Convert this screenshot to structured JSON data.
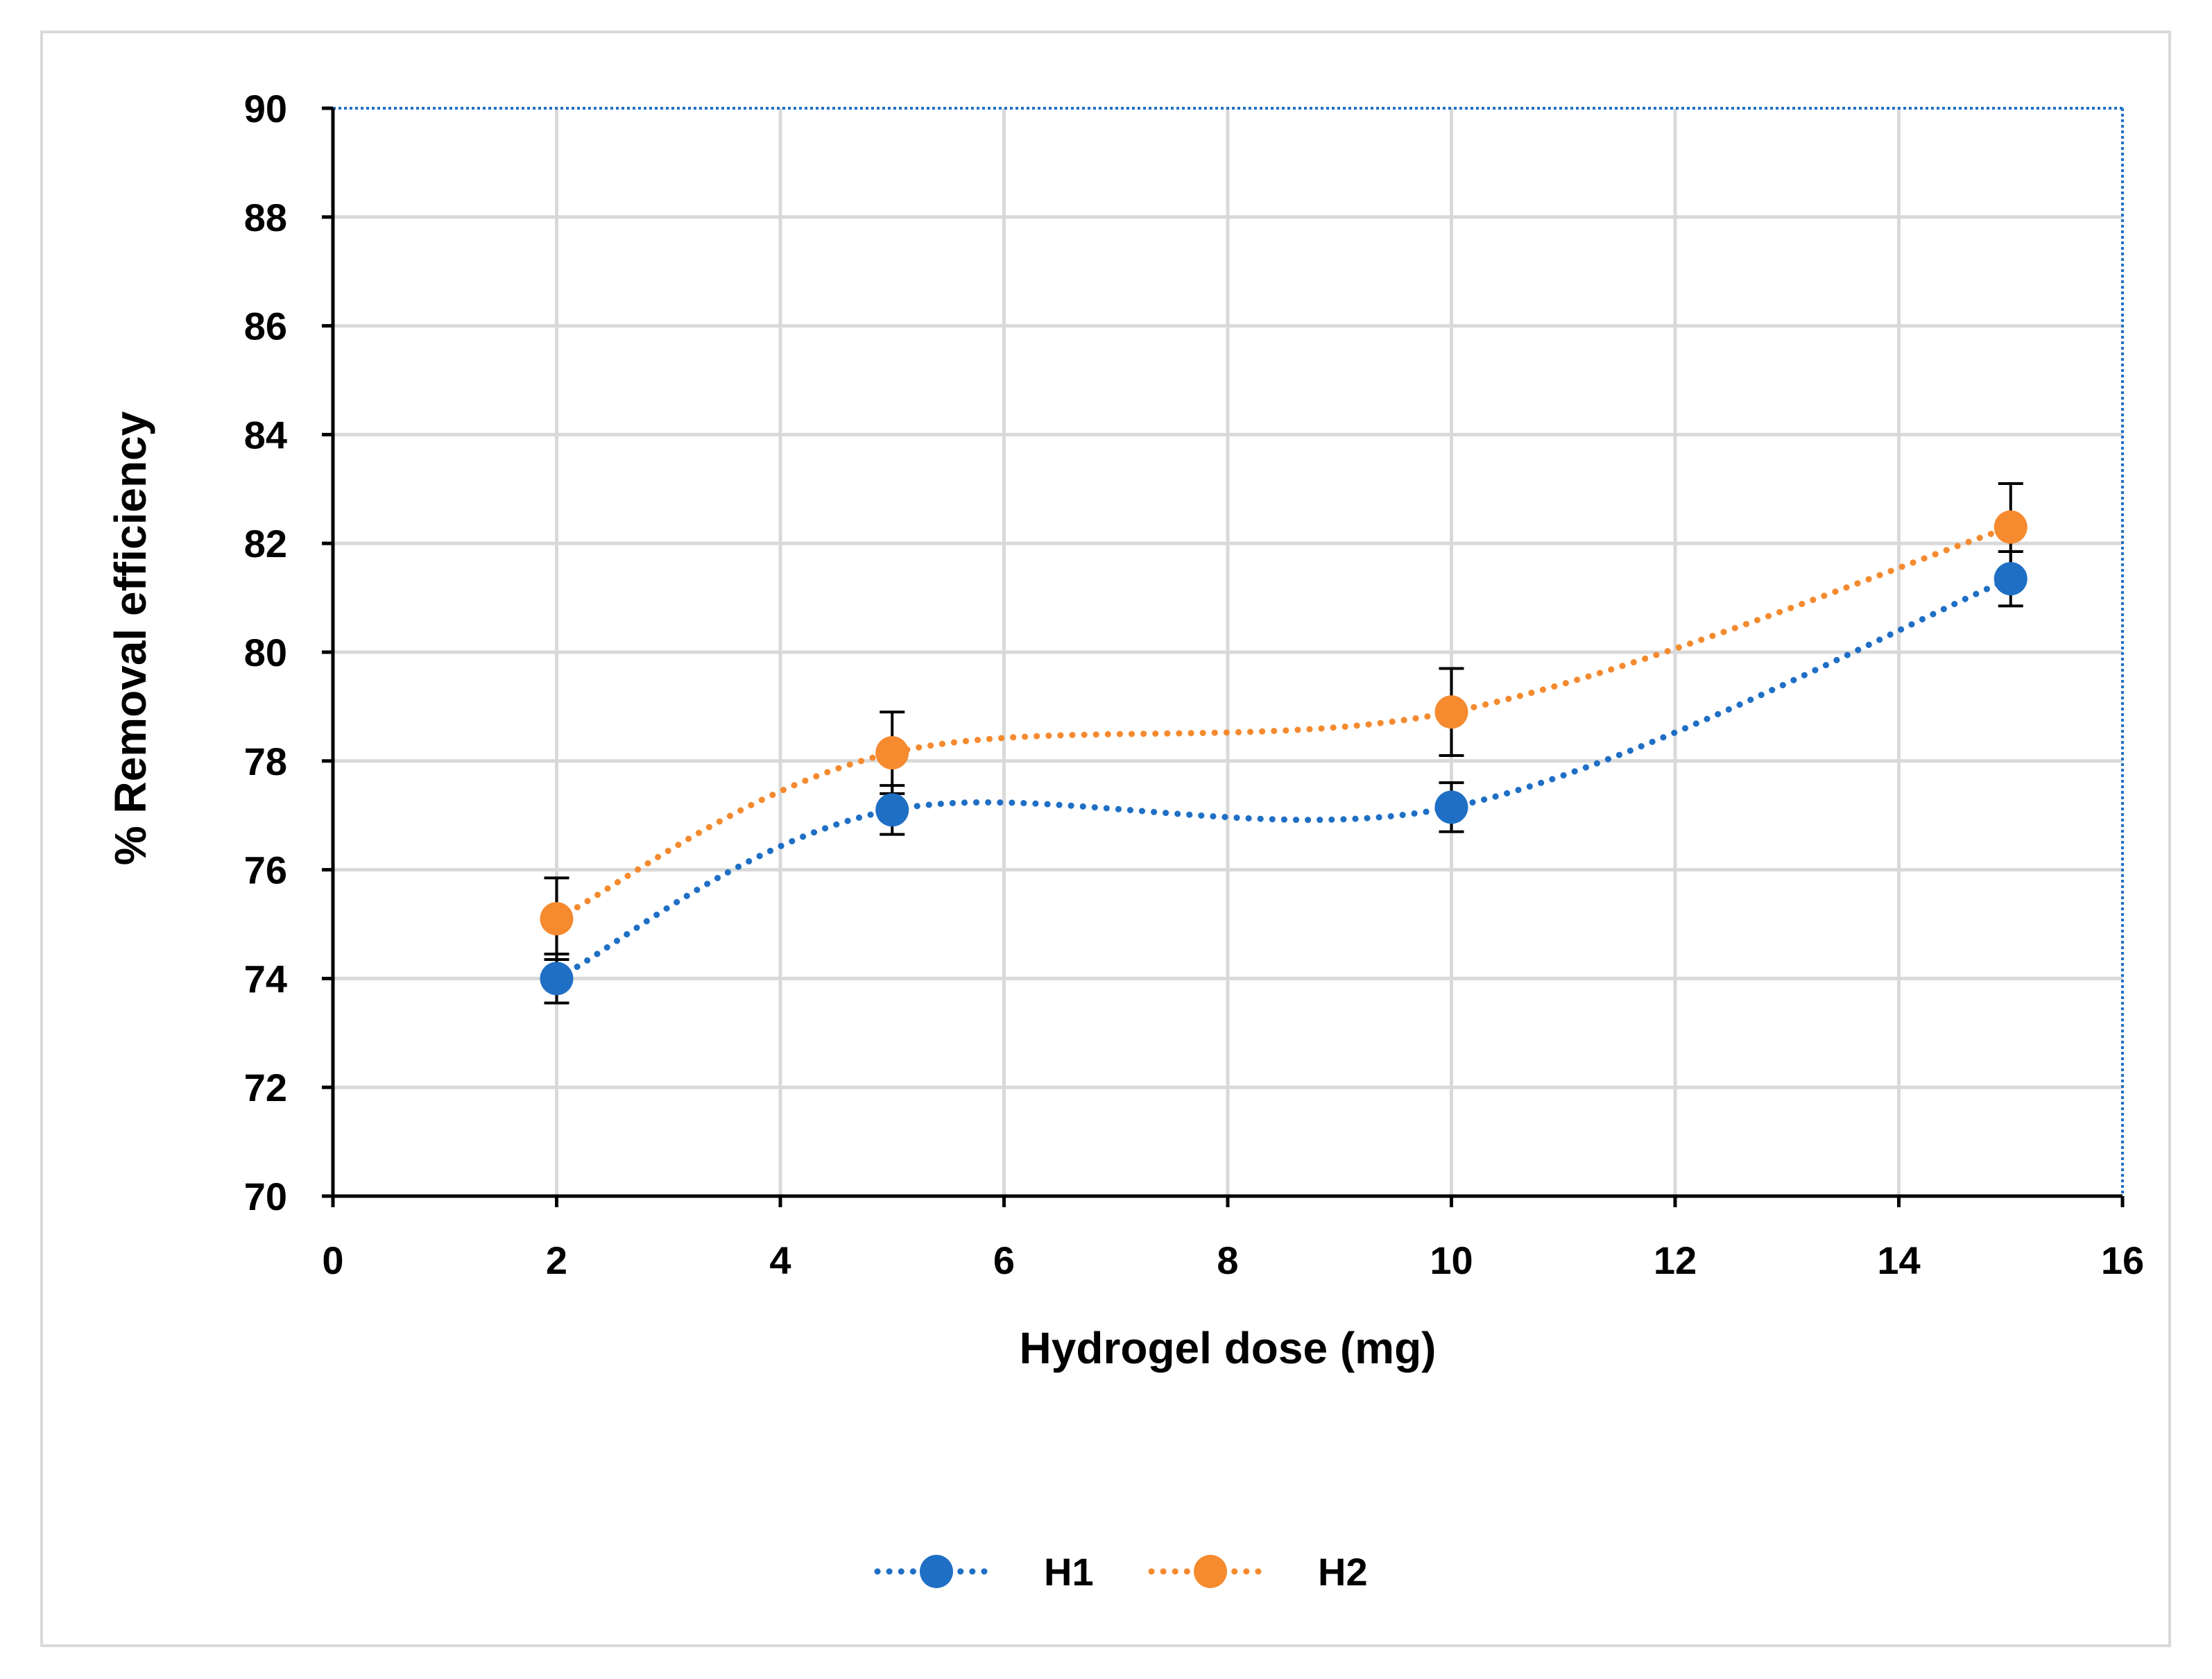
{
  "chart_data": {
    "type": "line",
    "title": "",
    "xlabel": "Hydrogel dose (mg)",
    "ylabel": "% Removal efficiency",
    "xlim": [
      0,
      16
    ],
    "ylim": [
      70,
      90
    ],
    "xticks": [
      0,
      2,
      4,
      6,
      8,
      10,
      12,
      14,
      16
    ],
    "yticks": [
      70,
      72,
      74,
      76,
      78,
      80,
      82,
      84,
      86,
      88,
      90
    ],
    "grid": true,
    "legend_position": "bottom-center",
    "series": [
      {
        "name": "H1",
        "color": "#1f6fc5",
        "line_style": "dotted-smooth",
        "x": [
          2,
          5,
          10,
          15
        ],
        "y": [
          74.0,
          77.1,
          77.15,
          81.35
        ],
        "err": [
          0.45,
          0.45,
          0.45,
          0.5
        ]
      },
      {
        "name": "H2",
        "color": "#f58a2f",
        "line_style": "dotted-smooth",
        "x": [
          2,
          5,
          10,
          15
        ],
        "y": [
          75.1,
          78.15,
          78.9,
          82.3
        ],
        "err": [
          0.75,
          0.75,
          0.8,
          0.8
        ]
      }
    ]
  }
}
